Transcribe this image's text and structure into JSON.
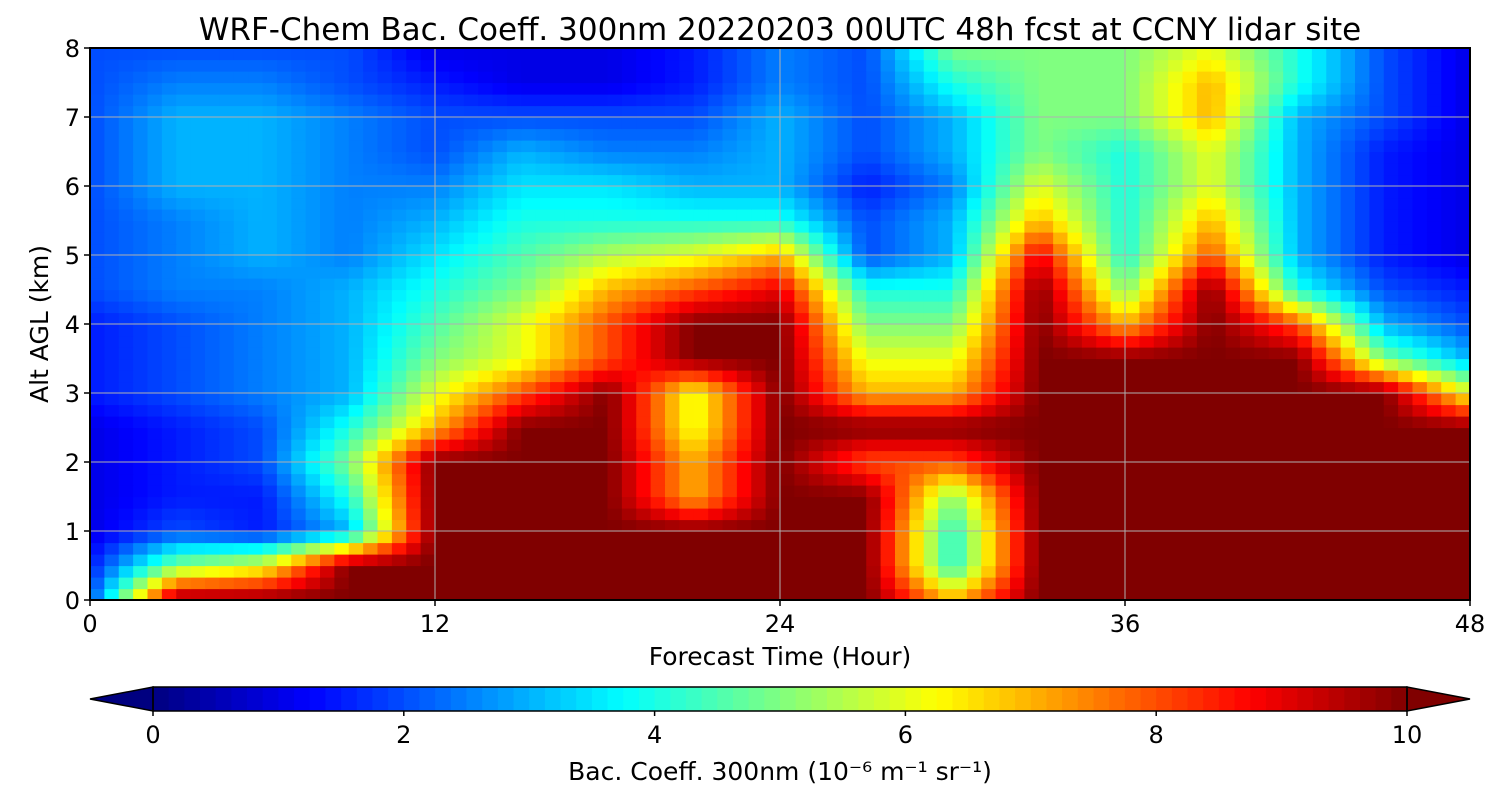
{
  "chart_data": {
    "type": "heatmap",
    "title": "WRF-Chem Bac. Coeff. 300nm  20220203 00UTC 48h fcst at CCNY lidar site",
    "xlabel": "Forecast Time (Hour)",
    "ylabel": "Alt AGL (km)",
    "xlim": [
      0,
      48
    ],
    "ylim": [
      0,
      8
    ],
    "xticks": [
      "0",
      "12",
      "24",
      "36",
      "48"
    ],
    "yticks": [
      "0",
      "1",
      "2",
      "3",
      "4",
      "5",
      "6",
      "7",
      "8"
    ],
    "grid": true,
    "colormap": "jet",
    "colorbar": {
      "label": "Bac. Coeff. 300nm  (10⁻⁶ m⁻¹ sr⁻¹)",
      "range": [
        0,
        10
      ],
      "ticks": [
        "0",
        "2",
        "4",
        "6",
        "8",
        "10"
      ],
      "extend": "both",
      "placement": "bottom"
    },
    "x": [
      0,
      3,
      6,
      9,
      12,
      15,
      18,
      21,
      24,
      27,
      30,
      33,
      36,
      39,
      42,
      45,
      48
    ],
    "y": [
      0,
      0.5,
      1,
      1.5,
      2,
      2.5,
      3,
      3.5,
      4,
      4.5,
      5,
      5.5,
      6,
      6.5,
      7,
      7.5,
      8
    ],
    "z": [
      [
        2,
        10,
        10,
        10,
        10,
        10,
        10,
        10,
        10,
        10,
        7,
        10,
        10,
        10,
        10,
        10,
        10
      ],
      [
        1.5,
        5,
        6,
        10,
        10,
        10,
        10,
        10,
        10,
        10,
        4,
        10,
        10,
        10,
        10,
        10,
        10
      ],
      [
        1,
        2,
        1.5,
        3,
        10,
        10,
        10,
        10,
        10,
        10,
        4,
        10,
        10,
        10,
        10,
        10,
        10
      ],
      [
        1,
        1.5,
        1.5,
        4,
        10,
        10,
        10,
        7,
        10,
        10,
        5,
        10,
        10,
        10,
        10,
        10,
        10
      ],
      [
        1,
        1.5,
        2,
        5,
        10,
        10,
        10,
        7,
        10,
        8,
        8,
        10,
        10,
        10,
        10,
        10,
        10
      ],
      [
        1,
        1.5,
        2,
        4,
        7,
        10,
        10,
        6,
        10,
        10,
        10,
        10,
        10,
        10,
        10,
        10,
        10
      ],
      [
        1.5,
        2,
        2.5,
        3,
        6,
        8,
        10,
        6,
        10,
        7,
        7,
        10,
        10,
        10,
        10,
        10,
        6
      ],
      [
        1.5,
        2,
        2.5,
        3,
        5,
        6,
        8,
        10,
        10,
        6,
        6,
        10,
        10,
        10,
        10,
        5,
        3
      ],
      [
        1.5,
        2,
        2.5,
        3,
        4.5,
        6,
        8,
        10,
        10,
        5,
        5,
        10,
        7,
        10,
        8,
        3,
        2
      ],
      [
        2,
        2.5,
        2.5,
        3,
        4,
        5,
        7,
        8,
        9,
        4,
        4,
        10,
        5,
        10,
        4,
        2,
        1.5
      ],
      [
        2,
        2.5,
        3,
        2.5,
        3.5,
        4.5,
        5.5,
        6,
        7,
        2,
        3,
        9,
        4,
        8,
        3,
        1.5,
        1
      ],
      [
        2,
        2.5,
        3,
        2.5,
        3,
        4,
        4,
        4,
        4,
        2,
        3,
        7,
        4,
        7,
        3,
        1.5,
        1
      ],
      [
        2,
        3,
        3,
        2.5,
        2.5,
        3.5,
        3.5,
        3,
        3,
        1.5,
        2.5,
        6,
        4,
        6,
        3,
        1.5,
        1
      ],
      [
        2,
        3,
        3,
        2.5,
        2,
        3,
        2.5,
        2.5,
        3,
        2,
        3,
        5,
        4,
        6,
        3,
        1.5,
        1
      ],
      [
        2,
        3,
        3,
        2.5,
        2,
        2,
        2,
        2,
        3,
        2,
        3,
        5,
        5,
        7,
        3,
        2,
        1
      ],
      [
        2,
        2.5,
        2.5,
        2,
        1.5,
        1,
        1,
        1.5,
        2.5,
        2,
        4,
        5,
        5,
        7,
        4,
        2,
        1
      ],
      [
        2,
        2,
        2,
        2,
        1,
        1,
        1,
        1.5,
        2.5,
        2,
        5,
        5,
        5,
        6,
        4,
        2,
        1
      ]
    ]
  }
}
